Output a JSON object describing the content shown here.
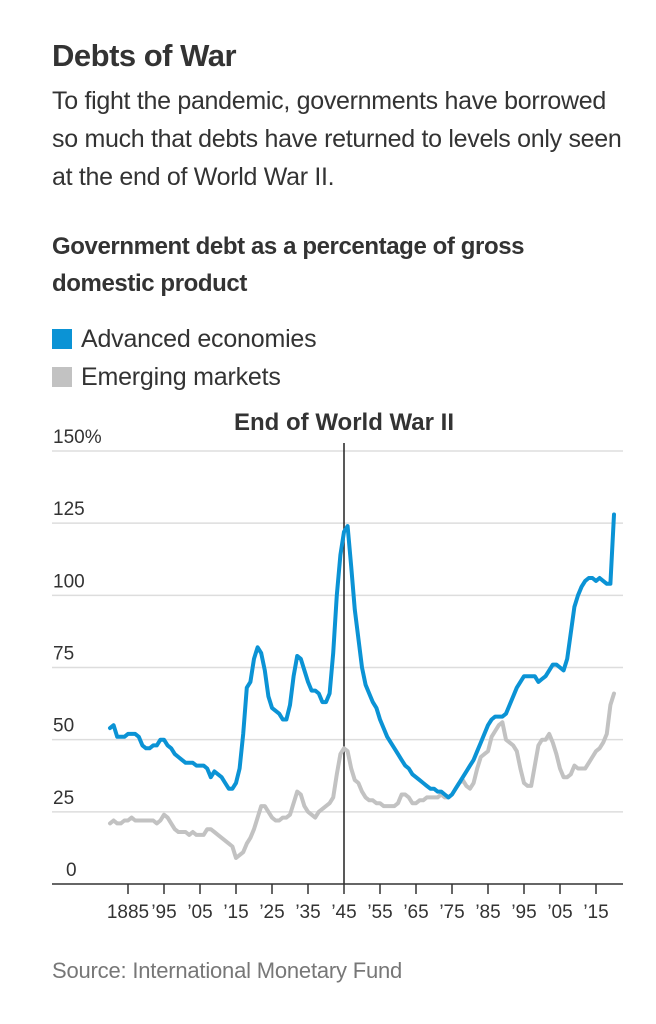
{
  "header": {
    "title": "Debts of War",
    "dek": "To fight the pandemic, governments have borrowed so much that debts have returned to levels only seen at the end of World War II."
  },
  "footer": {
    "source": "Source: International Monetary Fund"
  },
  "colors": {
    "advanced": "#0b93d5",
    "emerging": "#c2c2c2",
    "grid": "#dddddd",
    "axis": "#333333"
  },
  "chart_data": {
    "type": "line",
    "title": "Government debt as a percentage of gross domestic product",
    "xlabel": "",
    "ylabel": "",
    "ylim": [
      0,
      150
    ],
    "xlim": [
      1880,
      2021
    ],
    "grid": true,
    "legend_position": "top-left",
    "y_ticks": [
      {
        "value": 0,
        "label": "0"
      },
      {
        "value": 25,
        "label": "25"
      },
      {
        "value": 50,
        "label": "50"
      },
      {
        "value": 75,
        "label": "75"
      },
      {
        "value": 100,
        "label": "100"
      },
      {
        "value": 125,
        "label": "125"
      },
      {
        "value": 150,
        "label": "150%"
      }
    ],
    "x_ticks": [
      {
        "value": 1885,
        "label": "1885"
      },
      {
        "value": 1895,
        "label": "’95"
      },
      {
        "value": 1905,
        "label": "’05"
      },
      {
        "value": 1915,
        "label": "’15"
      },
      {
        "value": 1925,
        "label": "’25"
      },
      {
        "value": 1935,
        "label": "’35"
      },
      {
        "value": 1945,
        "label": "’45"
      },
      {
        "value": 1955,
        "label": "’55"
      },
      {
        "value": 1965,
        "label": "’65"
      },
      {
        "value": 1975,
        "label": "’75"
      },
      {
        "value": 1985,
        "label": "’85"
      },
      {
        "value": 1995,
        "label": "’95"
      },
      {
        "value": 2005,
        "label": "’05"
      },
      {
        "value": 2015,
        "label": "’15"
      }
    ],
    "annotations": [
      {
        "x": 1945,
        "label": "End of World War II"
      }
    ],
    "series": [
      {
        "name": "Advanced economies",
        "color": "#0b93d5",
        "points": [
          [
            1880,
            54
          ],
          [
            1881,
            55
          ],
          [
            1882,
            51
          ],
          [
            1883,
            51
          ],
          [
            1884,
            51
          ],
          [
            1885,
            52
          ],
          [
            1886,
            52
          ],
          [
            1887,
            52
          ],
          [
            1888,
            51
          ],
          [
            1889,
            48
          ],
          [
            1890,
            47
          ],
          [
            1891,
            47
          ],
          [
            1892,
            48
          ],
          [
            1893,
            48
          ],
          [
            1894,
            50
          ],
          [
            1895,
            50
          ],
          [
            1896,
            48
          ],
          [
            1897,
            47
          ],
          [
            1898,
            45
          ],
          [
            1899,
            44
          ],
          [
            1900,
            43
          ],
          [
            1901,
            42
          ],
          [
            1902,
            42
          ],
          [
            1903,
            42
          ],
          [
            1904,
            41
          ],
          [
            1905,
            41
          ],
          [
            1906,
            41
          ],
          [
            1907,
            40
          ],
          [
            1908,
            37
          ],
          [
            1909,
            39
          ],
          [
            1910,
            38
          ],
          [
            1911,
            37
          ],
          [
            1912,
            35
          ],
          [
            1913,
            33
          ],
          [
            1914,
            33
          ],
          [
            1915,
            35
          ],
          [
            1916,
            40
          ],
          [
            1917,
            52
          ],
          [
            1918,
            68
          ],
          [
            1919,
            70
          ],
          [
            1920,
            78
          ],
          [
            1921,
            82
          ],
          [
            1922,
            80
          ],
          [
            1923,
            74
          ],
          [
            1924,
            65
          ],
          [
            1925,
            61
          ],
          [
            1926,
            60
          ],
          [
            1927,
            59
          ],
          [
            1928,
            57
          ],
          [
            1929,
            57
          ],
          [
            1930,
            62
          ],
          [
            1931,
            72
          ],
          [
            1932,
            79
          ],
          [
            1933,
            78
          ],
          [
            1934,
            74
          ],
          [
            1935,
            70
          ],
          [
            1936,
            67
          ],
          [
            1937,
            67
          ],
          [
            1938,
            66
          ],
          [
            1939,
            63
          ],
          [
            1940,
            63
          ],
          [
            1941,
            66
          ],
          [
            1942,
            80
          ],
          [
            1943,
            100
          ],
          [
            1944,
            114
          ],
          [
            1945,
            122
          ],
          [
            1946,
            124
          ],
          [
            1947,
            110
          ],
          [
            1948,
            95
          ],
          [
            1949,
            85
          ],
          [
            1950,
            75
          ],
          [
            1951,
            69
          ],
          [
            1952,
            66
          ],
          [
            1953,
            63
          ],
          [
            1954,
            61
          ],
          [
            1955,
            57
          ],
          [
            1956,
            54
          ],
          [
            1957,
            51
          ],
          [
            1958,
            49
          ],
          [
            1959,
            47
          ],
          [
            1960,
            45
          ],
          [
            1961,
            43
          ],
          [
            1962,
            41
          ],
          [
            1963,
            40
          ],
          [
            1964,
            38
          ],
          [
            1965,
            37
          ],
          [
            1966,
            36
          ],
          [
            1967,
            35
          ],
          [
            1968,
            34
          ],
          [
            1969,
            33
          ],
          [
            1970,
            33
          ],
          [
            1971,
            32
          ],
          [
            1972,
            32
          ],
          [
            1973,
            31
          ],
          [
            1974,
            30
          ],
          [
            1975,
            31
          ],
          [
            1976,
            33
          ],
          [
            1977,
            35
          ],
          [
            1978,
            37
          ],
          [
            1979,
            39
          ],
          [
            1980,
            41
          ],
          [
            1981,
            43
          ],
          [
            1982,
            46
          ],
          [
            1983,
            49
          ],
          [
            1984,
            52
          ],
          [
            1985,
            55
          ],
          [
            1986,
            57
          ],
          [
            1987,
            58
          ],
          [
            1988,
            58
          ],
          [
            1989,
            58
          ],
          [
            1990,
            59
          ],
          [
            1991,
            62
          ],
          [
            1992,
            65
          ],
          [
            1993,
            68
          ],
          [
            1994,
            70
          ],
          [
            1995,
            72
          ],
          [
            1996,
            72
          ],
          [
            1997,
            72
          ],
          [
            1998,
            72
          ],
          [
            1999,
            70
          ],
          [
            2000,
            71
          ],
          [
            2001,
            72
          ],
          [
            2002,
            74
          ],
          [
            2003,
            76
          ],
          [
            2004,
            76
          ],
          [
            2005,
            75
          ],
          [
            2006,
            74
          ],
          [
            2007,
            78
          ],
          [
            2008,
            87
          ],
          [
            2009,
            96
          ],
          [
            2010,
            100
          ],
          [
            2011,
            103
          ],
          [
            2012,
            105
          ],
          [
            2013,
            106
          ],
          [
            2014,
            106
          ],
          [
            2015,
            105
          ],
          [
            2016,
            106
          ],
          [
            2017,
            105
          ],
          [
            2018,
            104
          ],
          [
            2019,
            104
          ],
          [
            2020,
            128
          ],
          [
            2021,
            128
          ]
        ]
      },
      {
        "name": "Emerging markets",
        "color": "#c2c2c2",
        "points": [
          [
            1880,
            21
          ],
          [
            1881,
            22
          ],
          [
            1882,
            21
          ],
          [
            1883,
            21
          ],
          [
            1884,
            22
          ],
          [
            1885,
            22
          ],
          [
            1886,
            23
          ],
          [
            1887,
            22
          ],
          [
            1888,
            22
          ],
          [
            1889,
            22
          ],
          [
            1890,
            22
          ],
          [
            1891,
            22
          ],
          [
            1892,
            22
          ],
          [
            1893,
            21
          ],
          [
            1894,
            22
          ],
          [
            1895,
            24
          ],
          [
            1896,
            23
          ],
          [
            1897,
            21
          ],
          [
            1898,
            19
          ],
          [
            1899,
            18
          ],
          [
            1900,
            18
          ],
          [
            1901,
            18
          ],
          [
            1902,
            17
          ],
          [
            1903,
            18
          ],
          [
            1904,
            17
          ],
          [
            1905,
            17
          ],
          [
            1906,
            17
          ],
          [
            1907,
            19
          ],
          [
            1908,
            19
          ],
          [
            1909,
            18
          ],
          [
            1910,
            17
          ],
          [
            1911,
            16
          ],
          [
            1912,
            15
          ],
          [
            1913,
            14
          ],
          [
            1914,
            13
          ],
          [
            1915,
            9
          ],
          [
            1916,
            10
          ],
          [
            1917,
            11
          ],
          [
            1918,
            14
          ],
          [
            1919,
            16
          ],
          [
            1920,
            19
          ],
          [
            1921,
            23
          ],
          [
            1922,
            27
          ],
          [
            1923,
            27
          ],
          [
            1924,
            25
          ],
          [
            1925,
            23
          ],
          [
            1926,
            22
          ],
          [
            1927,
            22
          ],
          [
            1928,
            23
          ],
          [
            1929,
            23
          ],
          [
            1930,
            24
          ],
          [
            1931,
            28
          ],
          [
            1932,
            32
          ],
          [
            1933,
            31
          ],
          [
            1934,
            27
          ],
          [
            1935,
            25
          ],
          [
            1936,
            24
          ],
          [
            1937,
            23
          ],
          [
            1938,
            25
          ],
          [
            1939,
            26
          ],
          [
            1940,
            27
          ],
          [
            1941,
            28
          ],
          [
            1942,
            30
          ],
          [
            1943,
            38
          ],
          [
            1944,
            45
          ],
          [
            1945,
            47
          ],
          [
            1946,
            46
          ],
          [
            1947,
            40
          ],
          [
            1948,
            36
          ],
          [
            1949,
            35
          ],
          [
            1950,
            32
          ],
          [
            1951,
            30
          ],
          [
            1952,
            29
          ],
          [
            1953,
            29
          ],
          [
            1954,
            28
          ],
          [
            1955,
            28
          ],
          [
            1956,
            27
          ],
          [
            1957,
            27
          ],
          [
            1958,
            27
          ],
          [
            1959,
            27
          ],
          [
            1960,
            28
          ],
          [
            1961,
            31
          ],
          [
            1962,
            31
          ],
          [
            1963,
            30
          ],
          [
            1964,
            28
          ],
          [
            1965,
            28
          ],
          [
            1966,
            29
          ],
          [
            1967,
            29
          ],
          [
            1968,
            30
          ],
          [
            1969,
            30
          ],
          [
            1970,
            30
          ],
          [
            1971,
            30
          ],
          [
            1972,
            31
          ],
          [
            1973,
            30
          ],
          [
            1974,
            30
          ],
          [
            1975,
            31
          ],
          [
            1976,
            33
          ],
          [
            1977,
            35
          ],
          [
            1978,
            36
          ],
          [
            1979,
            34
          ],
          [
            1980,
            33
          ],
          [
            1981,
            35
          ],
          [
            1982,
            40
          ],
          [
            1983,
            44
          ],
          [
            1984,
            45
          ],
          [
            1985,
            46
          ],
          [
            1986,
            51
          ],
          [
            1987,
            53
          ],
          [
            1988,
            55
          ],
          [
            1989,
            56
          ],
          [
            1990,
            50
          ],
          [
            1991,
            49
          ],
          [
            1992,
            48
          ],
          [
            1993,
            46
          ],
          [
            1994,
            40
          ],
          [
            1995,
            35
          ],
          [
            1996,
            34
          ],
          [
            1997,
            34
          ],
          [
            1998,
            41
          ],
          [
            1999,
            48
          ],
          [
            2000,
            50
          ],
          [
            2001,
            50
          ],
          [
            2002,
            52
          ],
          [
            2003,
            49
          ],
          [
            2004,
            45
          ],
          [
            2005,
            40
          ],
          [
            2006,
            37
          ],
          [
            2007,
            37
          ],
          [
            2008,
            38
          ],
          [
            2009,
            41
          ],
          [
            2010,
            40
          ],
          [
            2011,
            40
          ],
          [
            2012,
            40
          ],
          [
            2013,
            42
          ],
          [
            2014,
            44
          ],
          [
            2015,
            46
          ],
          [
            2016,
            47
          ],
          [
            2017,
            49
          ],
          [
            2018,
            52
          ],
          [
            2019,
            62
          ],
          [
            2020,
            66
          ],
          [
            2021,
            66
          ]
        ]
      }
    ]
  }
}
